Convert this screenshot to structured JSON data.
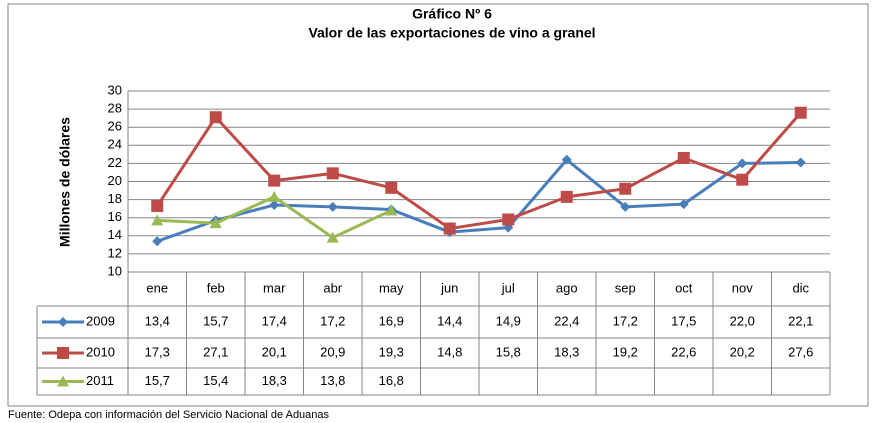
{
  "chart_data": {
    "type": "line",
    "title": "Gráfico Nº 6",
    "subtitle": "Valor de las exportaciones de vino a granel",
    "y_label": "Millones de dólares",
    "source": "Fuente: Odepa con información del Servicio Nacional de Aduanas",
    "categories": [
      "ene",
      "feb",
      "mar",
      "abr",
      "may",
      "jun",
      "jul",
      "ago",
      "sep",
      "oct",
      "nov",
      "dic"
    ],
    "ylim": [
      10,
      30
    ],
    "yticks": [
      10,
      12,
      14,
      16,
      18,
      20,
      22,
      24,
      26,
      28,
      30
    ],
    "grid": true,
    "series": [
      {
        "name": "2009",
        "color": "#4a7ebb",
        "marker": "diamond",
        "values": [
          13.4,
          15.7,
          17.4,
          17.2,
          16.9,
          14.4,
          14.9,
          22.4,
          17.2,
          17.5,
          22.0,
          22.1
        ],
        "value_labels": [
          "13,4",
          "15,7",
          "17,4",
          "17,2",
          "16,9",
          "14,4",
          "14,9",
          "22,4",
          "17,2",
          "17,5",
          "22,0",
          "22,1"
        ]
      },
      {
        "name": "2010",
        "color": "#be4b48",
        "marker": "square",
        "values": [
          17.3,
          27.1,
          20.1,
          20.9,
          19.3,
          14.8,
          15.8,
          18.3,
          19.2,
          22.6,
          20.2,
          27.6
        ],
        "value_labels": [
          "17,3",
          "27,1",
          "20,1",
          "20,9",
          "19,3",
          "14,8",
          "15,8",
          "18,3",
          "19,2",
          "22,6",
          "20,2",
          "27,6"
        ]
      },
      {
        "name": "2011",
        "color": "#98b954",
        "marker": "triangle",
        "values": [
          15.7,
          15.4,
          18.3,
          13.8,
          16.8,
          null,
          null,
          null,
          null,
          null,
          null,
          null
        ],
        "value_labels": [
          "15,7",
          "15,4",
          "18,3",
          "13,8",
          "16,8",
          null,
          null,
          null,
          null,
          null,
          null,
          null
        ]
      }
    ]
  }
}
